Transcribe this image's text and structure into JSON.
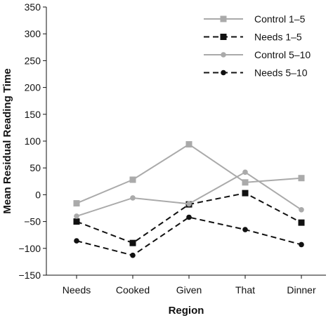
{
  "chart_data": {
    "type": "line",
    "xlabel": "Region",
    "ylabel": "Mean Residual Reading Time",
    "categories": [
      "Needs",
      "Cooked",
      "Given",
      "That",
      "Dinner"
    ],
    "ylim": [
      -150,
      350
    ],
    "yticks": [
      -150,
      -100,
      -50,
      0,
      50,
      100,
      150,
      200,
      250,
      300,
      350
    ],
    "grid": false,
    "legend_position": "top-right",
    "series": [
      {
        "name": "Control 1–5",
        "values": [
          -16,
          28,
          94,
          23,
          31
        ],
        "color": "#aaaaaa",
        "dash": "solid",
        "marker": "square"
      },
      {
        "name": "Needs 1–5",
        "values": [
          -50,
          -90,
          -18,
          3,
          -52
        ],
        "color": "#111111",
        "dash": "dashed",
        "marker": "square"
      },
      {
        "name": "Control 5–10",
        "values": [
          -40,
          -6,
          -17,
          42,
          -28
        ],
        "color": "#aaaaaa",
        "dash": "solid",
        "marker": "circle"
      },
      {
        "name": "Needs 5–10",
        "values": [
          -86,
          -113,
          -42,
          -65,
          -93
        ],
        "color": "#111111",
        "dash": "dashed",
        "marker": "circle"
      }
    ]
  }
}
